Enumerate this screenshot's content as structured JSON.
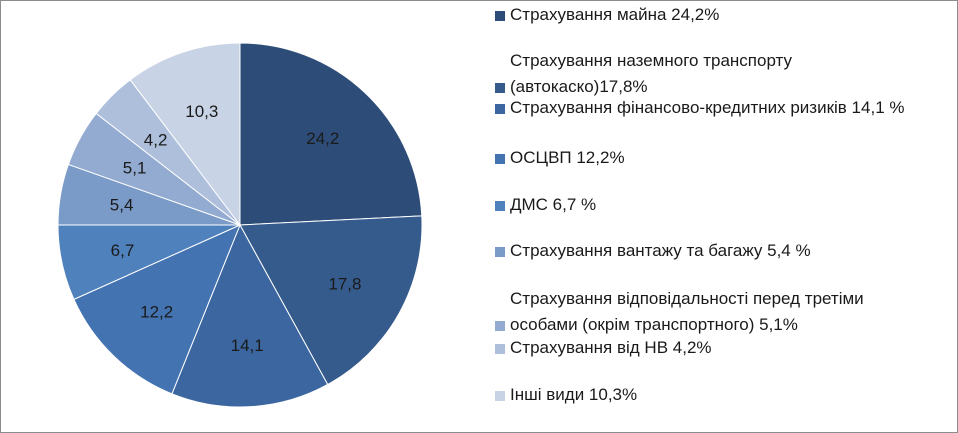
{
  "chart_data": {
    "type": "pie",
    "categories": [
      "Страхування майна",
      "Страхування наземного транспорту (автокаско)",
      "Страхування фінансово-кредитних ризиків",
      "ОСЦВП",
      "ДМС",
      "Страхування вантажу та багажу",
      "Страхування відповідальності перед третіми особами (окрім транспортного)",
      "Страхування від НВ",
      "Інші види"
    ],
    "values": [
      24.2,
      17.8,
      14.1,
      12.2,
      6.7,
      5.4,
      5.1,
      4.2,
      10.3
    ],
    "data_labels": [
      "24,2",
      "17,8",
      "14,1",
      "12,2",
      "6,7",
      "5,4",
      "5,1",
      "4,2",
      "10,3"
    ],
    "colors": [
      "#2d4d78",
      "#355b8c",
      "#3b66a0",
      "#4473b2",
      "#4f81bd",
      "#7a9bc8",
      "#93abd1",
      "#aebfdc",
      "#c9d3e6"
    ],
    "legend_position": "right",
    "legend": [
      [
        "Страхування майна 24,2%"
      ],
      [
        "Страхування наземного транспорту",
        "(автокаско)17,8%"
      ],
      [
        "Страхування фінансово-кредитних ризиків 14,1 %"
      ],
      [
        "ОСЦВП 12,2%"
      ],
      [
        "ДМС 6,7 %"
      ],
      [
        "Страхування вантажу та багажу 5,4 %"
      ],
      [
        "Страхування відповідальності перед третіми",
        "особами (окрім транспортного) 5,1%"
      ],
      [
        "Страхування від НВ 4,2%"
      ],
      [
        "Інші види 10,3%"
      ]
    ]
  }
}
